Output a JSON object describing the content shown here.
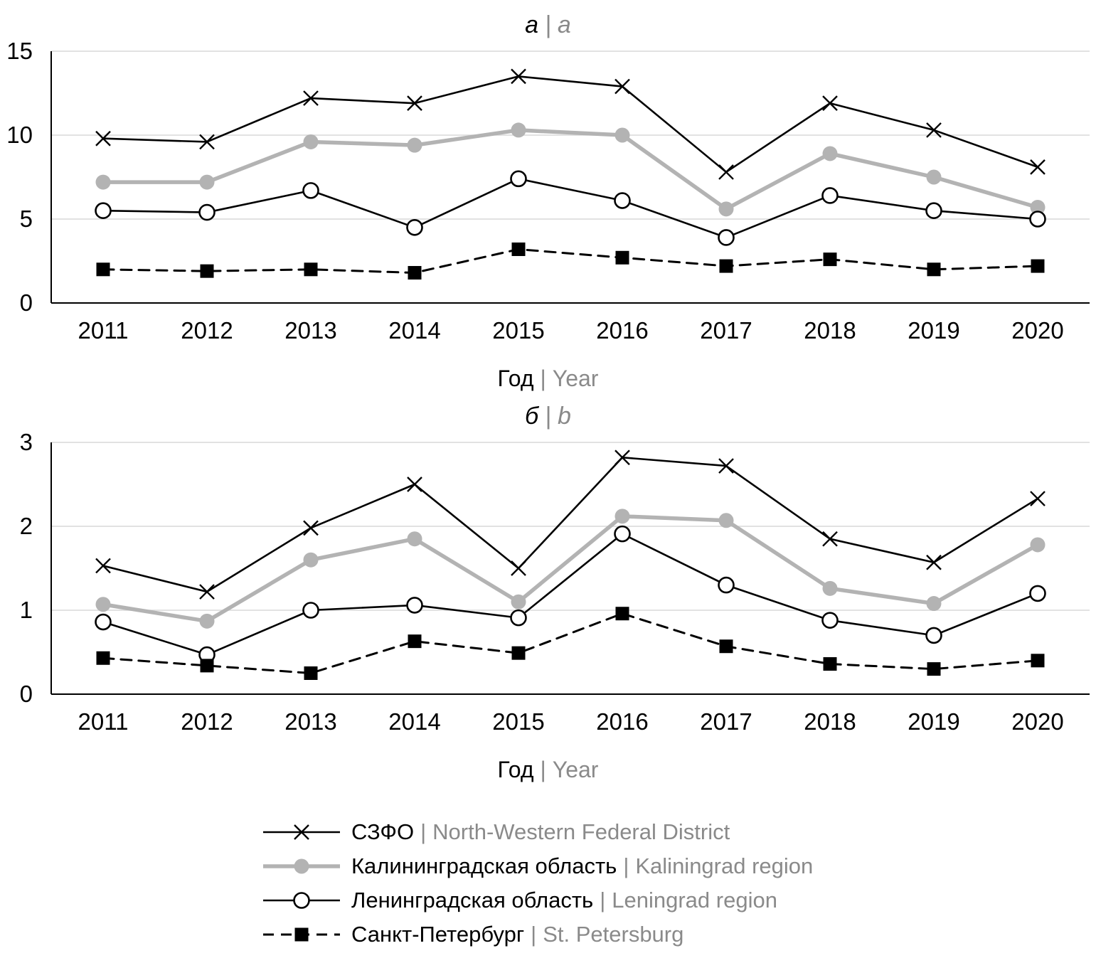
{
  "page": {
    "background": "#ffffff"
  },
  "colors": {
    "black": "#000000",
    "gray_line": "#b3b3b3",
    "text_gray": "#8a8a8a",
    "gridline": "#d9d9d9",
    "axis": "#000000"
  },
  "separator": "|",
  "chart_data": [
    {
      "type": "line",
      "panel_label_ru": "а",
      "panel_label_en": "a",
      "xlabel_ru": "Год",
      "xlabel_en": "Year",
      "categories": [
        "2011",
        "2012",
        "2013",
        "2014",
        "2015",
        "2016",
        "2017",
        "2018",
        "2019",
        "2020"
      ],
      "ylim": [
        0,
        15
      ],
      "yticks": [
        0,
        5,
        10,
        15
      ],
      "grid": true,
      "legend_position": "bottom",
      "series": [
        {
          "key": "szfo",
          "name_ru": "СЗФО",
          "name_en": "North-Western Federal District",
          "marker": "x",
          "color": "black",
          "dash": false,
          "width": 2.6,
          "values": [
            9.8,
            9.6,
            12.2,
            11.9,
            13.5,
            12.9,
            7.8,
            11.9,
            10.3,
            8.1
          ]
        },
        {
          "key": "kaliningrad",
          "name_ru": "Калининградская область",
          "name_en": "Kaliningrad region",
          "marker": "circle-filled",
          "color": "gray",
          "dash": false,
          "width": 5.5,
          "values": [
            7.2,
            7.2,
            9.6,
            9.4,
            10.3,
            10.0,
            5.6,
            8.9,
            7.5,
            5.7
          ]
        },
        {
          "key": "leningrad",
          "name_ru": "Ленинградская область",
          "name_en": "Leningrad region",
          "marker": "circle-open",
          "color": "black",
          "dash": false,
          "width": 2.6,
          "values": [
            5.5,
            5.4,
            6.7,
            4.5,
            7.4,
            6.1,
            3.9,
            6.4,
            5.5,
            5.0
          ]
        },
        {
          "key": "spb",
          "name_ru": "Санкт-Петербург",
          "name_en": "St. Petersburg",
          "marker": "square-filled",
          "color": "black",
          "dash": true,
          "width": 3,
          "values": [
            2.0,
            1.9,
            2.0,
            1.8,
            3.2,
            2.7,
            2.2,
            2.6,
            2.0,
            2.2
          ]
        }
      ]
    },
    {
      "type": "line",
      "panel_label_ru": "б",
      "panel_label_en": "b",
      "xlabel_ru": "Год",
      "xlabel_en": "Year",
      "categories": [
        "2011",
        "2012",
        "2013",
        "2014",
        "2015",
        "2016",
        "2017",
        "2018",
        "2019",
        "2020"
      ],
      "ylim": [
        0,
        3
      ],
      "yticks": [
        0,
        1,
        2,
        3
      ],
      "grid": true,
      "legend_position": "bottom",
      "series": [
        {
          "key": "szfo",
          "name_ru": "СЗФО",
          "name_en": "North-Western Federal District",
          "marker": "x",
          "color": "black",
          "dash": false,
          "width": 2.6,
          "values": [
            1.53,
            1.22,
            1.98,
            2.5,
            1.5,
            2.82,
            2.72,
            1.85,
            1.57,
            2.33
          ]
        },
        {
          "key": "kaliningrad",
          "name_ru": "Калининградская область",
          "name_en": "Kaliningrad region",
          "marker": "circle-filled",
          "color": "gray",
          "dash": false,
          "width": 5.5,
          "values": [
            1.07,
            0.87,
            1.6,
            1.85,
            1.1,
            2.12,
            2.07,
            1.26,
            1.08,
            1.78
          ]
        },
        {
          "key": "leningrad",
          "name_ru": "Ленинградская область",
          "name_en": "Leningrad region",
          "marker": "circle-open",
          "color": "black",
          "dash": false,
          "width": 2.6,
          "values": [
            0.86,
            0.47,
            1.0,
            1.06,
            0.91,
            1.91,
            1.3,
            0.88,
            0.7,
            1.2
          ]
        },
        {
          "key": "spb",
          "name_ru": "Санкт-Петербург",
          "name_en": "St. Petersburg",
          "marker": "square-filled",
          "color": "black",
          "dash": true,
          "width": 3,
          "values": [
            0.43,
            0.34,
            0.25,
            0.63,
            0.49,
            0.96,
            0.57,
            0.36,
            0.3,
            0.4
          ]
        }
      ]
    }
  ]
}
